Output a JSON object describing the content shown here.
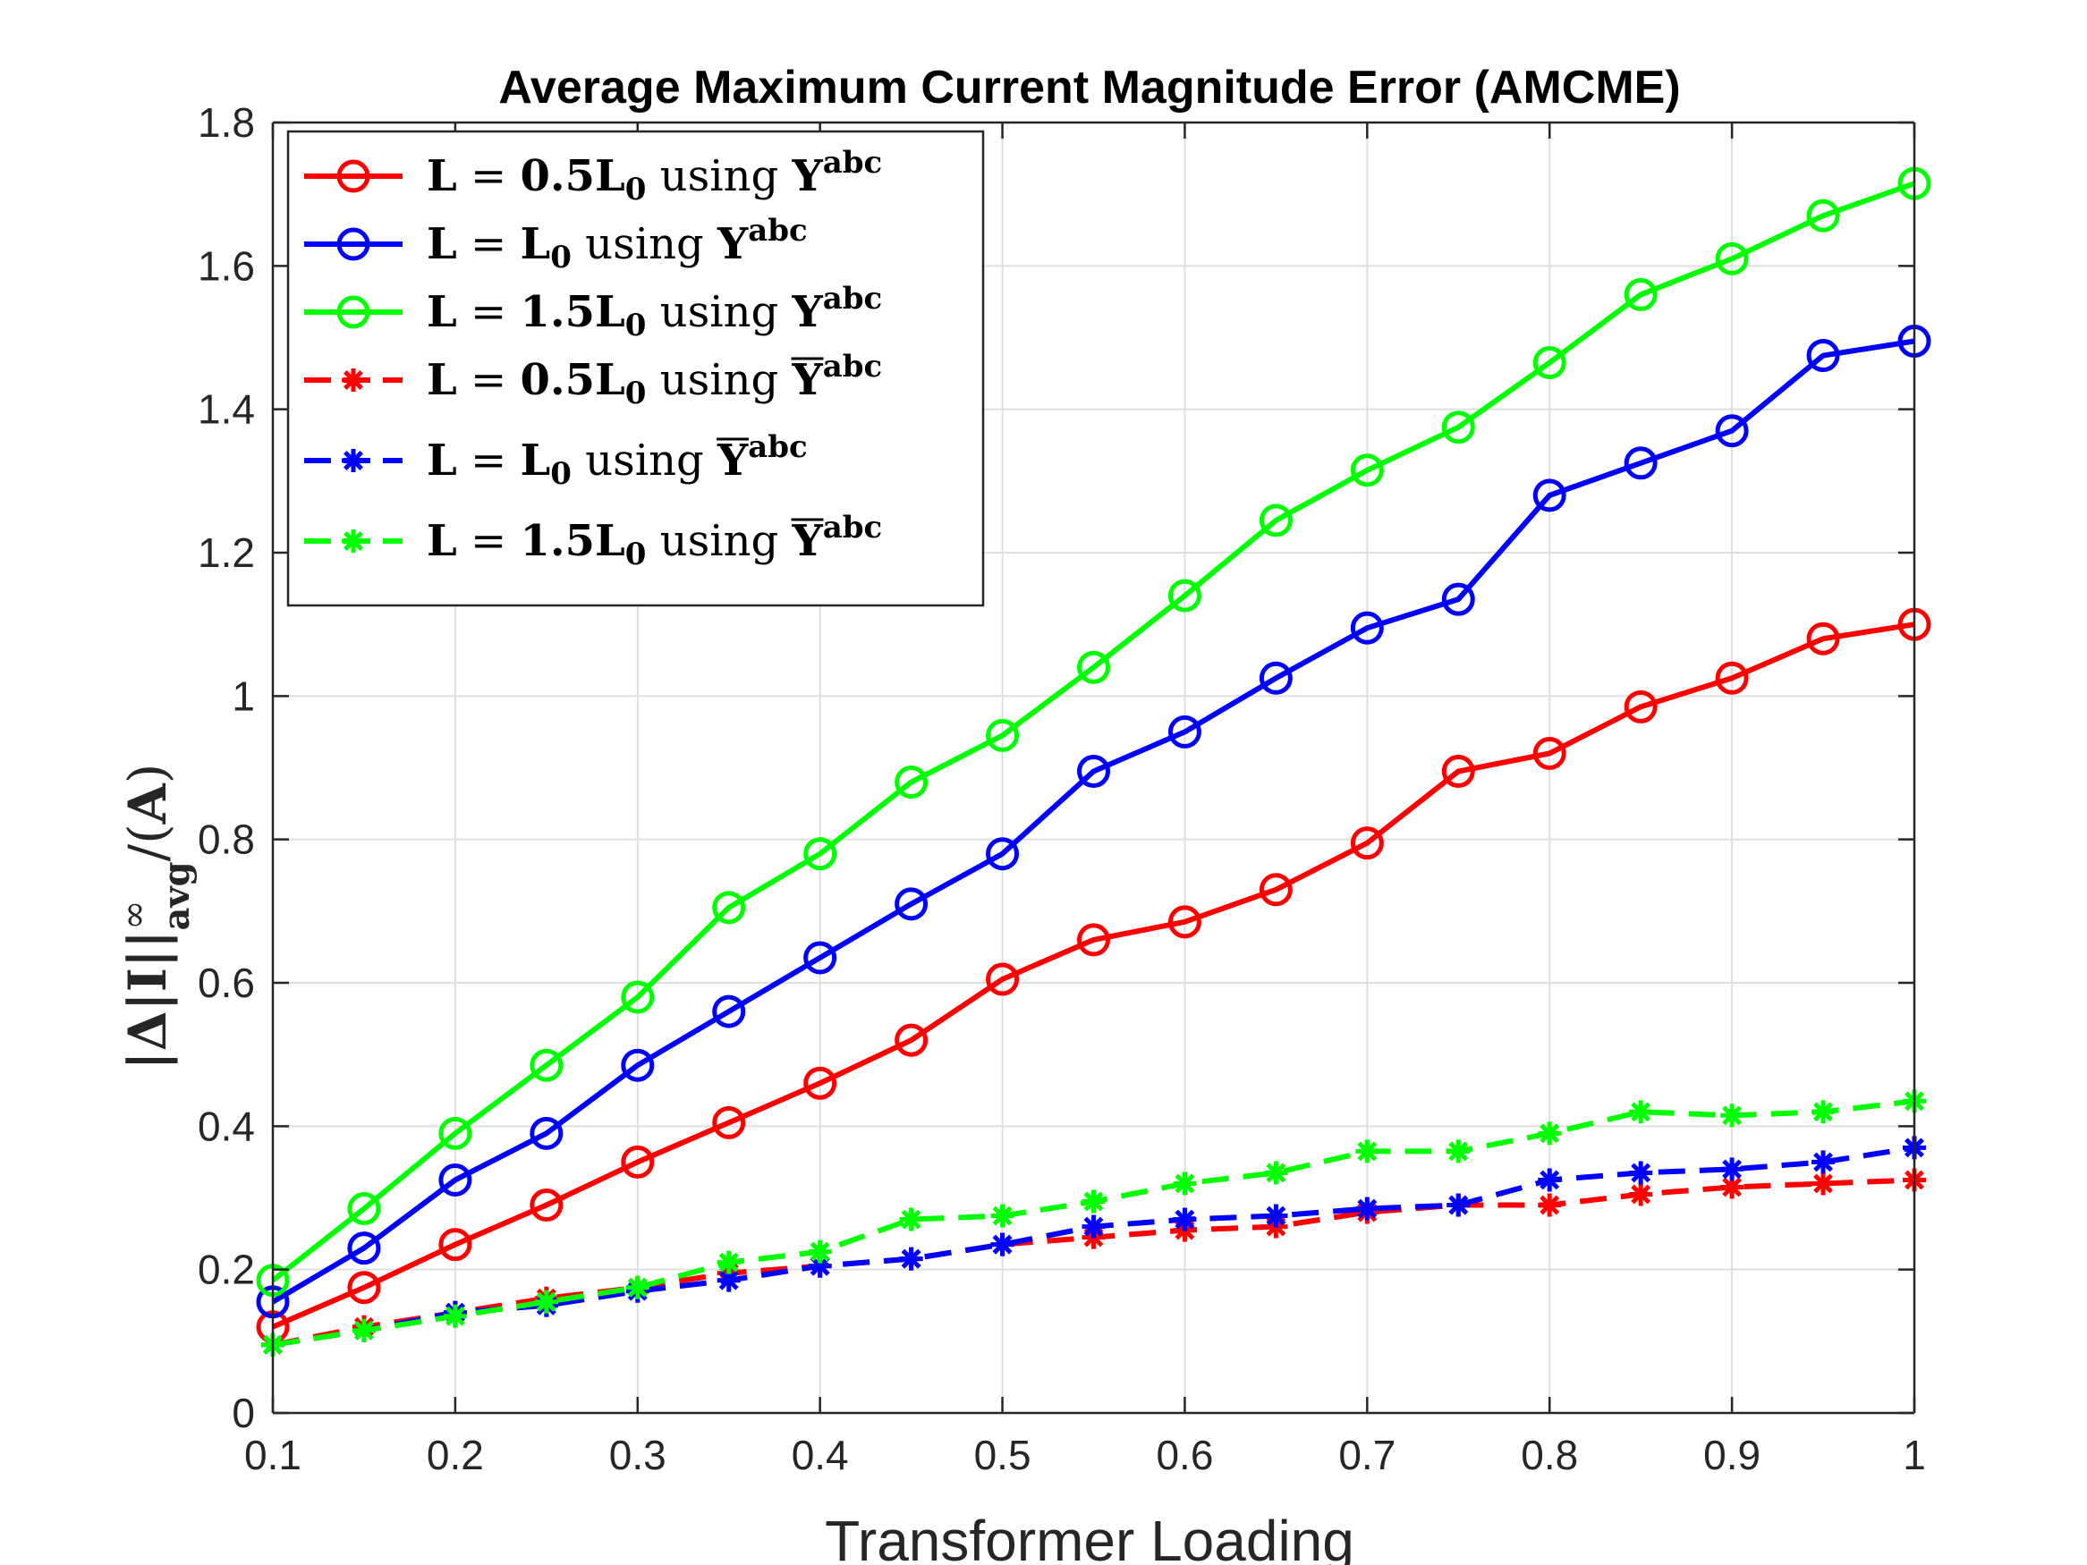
{
  "chart_data": {
    "type": "line",
    "title": "Average Maximum Current Magnitude Error (AMCME)",
    "xlabel": "Transformer Loading",
    "ylabel": "|Δ|I||∞avg/(A)",
    "xlim": [
      0.1,
      1
    ],
    "ylim": [
      0,
      1.8
    ],
    "xticks": [
      "0.1",
      "0.2",
      "0.3",
      "0.4",
      "0.5",
      "0.6",
      "0.7",
      "0.8",
      "0.9",
      "1"
    ],
    "yticks": [
      "0",
      "0.2",
      "0.4",
      "0.6",
      "0.8",
      "1",
      "1.2",
      "1.4",
      "1.6",
      "1.8"
    ],
    "grid": true,
    "legend_position": "top-left",
    "x": [
      0.1,
      0.15,
      0.2,
      0.25,
      0.3,
      0.35,
      0.4,
      0.45,
      0.5,
      0.55,
      0.6,
      0.65,
      0.7,
      0.75,
      0.8,
      0.85,
      0.9,
      0.95,
      1.0
    ],
    "series": [
      {
        "name": "L = 0.5L0 using Yabc",
        "legend": {
          "coef": "0.5",
          "bar": false
        },
        "color": "#ff0000",
        "style": "solid",
        "marker": "circle",
        "values": [
          0.12,
          0.175,
          0.235,
          0.29,
          0.35,
          0.405,
          0.46,
          0.52,
          0.605,
          0.66,
          0.685,
          0.73,
          0.795,
          0.895,
          0.92,
          0.985,
          1.025,
          1.08,
          1.1
        ]
      },
      {
        "name": "L = L0 using Yabc",
        "legend": {
          "coef": "",
          "bar": false
        },
        "color": "#0000ff",
        "style": "solid",
        "marker": "circle",
        "values": [
          0.155,
          0.23,
          0.325,
          0.39,
          0.485,
          0.56,
          0.635,
          0.71,
          0.78,
          0.895,
          0.95,
          1.025,
          1.095,
          1.135,
          1.28,
          1.325,
          1.37,
          1.475,
          1.495
        ]
      },
      {
        "name": "L = 1.5L0 using Yabc",
        "legend": {
          "coef": "1.5",
          "bar": false
        },
        "color": "#00ff00",
        "style": "solid",
        "marker": "circle",
        "values": [
          0.185,
          0.285,
          0.39,
          0.485,
          0.58,
          0.705,
          0.78,
          0.88,
          0.945,
          1.04,
          1.14,
          1.245,
          1.315,
          1.375,
          1.465,
          1.56,
          1.61,
          1.67,
          1.715
        ]
      },
      {
        "name": "L = 0.5L0 using Ȳabc",
        "legend": {
          "coef": "0.5",
          "bar": true
        },
        "color": "#ff0000",
        "style": "dashed",
        "marker": "asterisk",
        "values": [
          0.095,
          0.12,
          0.14,
          0.16,
          0.175,
          0.195,
          0.205,
          0.215,
          0.235,
          0.245,
          0.255,
          0.26,
          0.28,
          0.29,
          0.29,
          0.305,
          0.315,
          0.32,
          0.325
        ]
      },
      {
        "name": "L = L0 using Ȳabc",
        "legend": {
          "coef": "",
          "bar": true
        },
        "color": "#0000ff",
        "style": "dashed",
        "marker": "asterisk",
        "values": [
          0.095,
          0.115,
          0.14,
          0.15,
          0.17,
          0.185,
          0.205,
          0.215,
          0.235,
          0.26,
          0.27,
          0.275,
          0.285,
          0.29,
          0.325,
          0.335,
          0.34,
          0.35,
          0.37
        ]
      },
      {
        "name": "L = 1.5L0 using Ȳabc",
        "legend": {
          "coef": "1.5",
          "bar": true
        },
        "color": "#00ff00",
        "style": "dashed",
        "marker": "asterisk",
        "values": [
          0.095,
          0.115,
          0.135,
          0.155,
          0.175,
          0.21,
          0.225,
          0.27,
          0.275,
          0.295,
          0.32,
          0.335,
          0.365,
          0.365,
          0.39,
          0.42,
          0.415,
          0.42,
          0.435
        ]
      }
    ]
  }
}
